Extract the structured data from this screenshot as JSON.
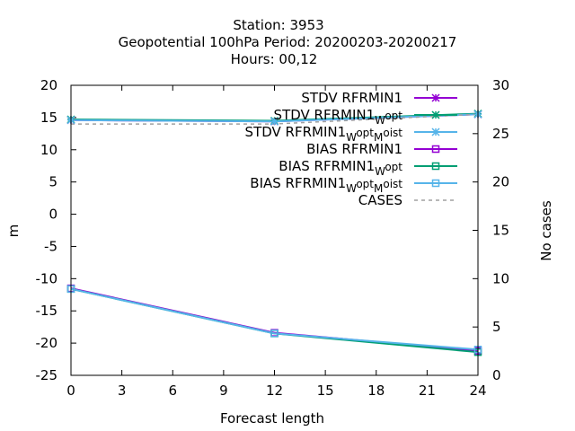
{
  "chart_data": {
    "type": "line",
    "title_lines": [
      "Station:     3953",
      "Geopotential 100hPa   Period: 20200203-20200217",
      "Hours:  00,12"
    ],
    "xlabel": "Forecast length",
    "ylabel": "m",
    "y2label": "No cases",
    "x": [
      0,
      12,
      24
    ],
    "xlim": [
      0,
      24
    ],
    "ylim": [
      -25,
      20
    ],
    "y2lim": [
      0,
      30
    ],
    "x_ticks": [
      0,
      3,
      6,
      9,
      12,
      15,
      18,
      21,
      24
    ],
    "y_ticks": [
      -25,
      -20,
      -15,
      -10,
      -5,
      0,
      5,
      10,
      15,
      20
    ],
    "y2_ticks": [
      0,
      5,
      10,
      15,
      20,
      25,
      30
    ],
    "grid": false,
    "legend_position": "top-right",
    "series": [
      {
        "name": "STDV RFRMIN1",
        "values": [
          14.6,
          14.4,
          15.5
        ],
        "color": "#9400d3",
        "marker": "star",
        "axis": "y"
      },
      {
        "name": "STDV RFRMIN1_Wopt",
        "values": [
          14.7,
          14.5,
          15.6
        ],
        "color": "#009e73",
        "marker": "star",
        "axis": "y"
      },
      {
        "name": "STDV RFRMIN1_Wopt_Moist",
        "values": [
          14.6,
          14.4,
          15.5
        ],
        "color": "#56b4e9",
        "marker": "star",
        "axis": "y"
      },
      {
        "name": "BIAS RFRMIN1",
        "values": [
          -11.5,
          -18.4,
          -21.2
        ],
        "color": "#9400d3",
        "marker": "square",
        "axis": "y"
      },
      {
        "name": "BIAS RFRMIN1_Wopt",
        "values": [
          -11.6,
          -18.5,
          -21.4
        ],
        "color": "#009e73",
        "marker": "square",
        "axis": "y"
      },
      {
        "name": "BIAS RFRMIN1_Wopt_Moist",
        "values": [
          -11.6,
          -18.5,
          -21.0
        ],
        "color": "#56b4e9",
        "marker": "square",
        "axis": "y"
      },
      {
        "name": "CASES",
        "values": [
          26.0,
          26.0,
          27.0
        ],
        "color": "#a0a0a0",
        "marker": "none",
        "dashed": true,
        "axis": "y2"
      }
    ],
    "legend": [
      {
        "base": "STDV RFRMIN1",
        "subs": []
      },
      {
        "base": "STDV RFRMIN1",
        "subs": [
          "W",
          "opt"
        ]
      },
      {
        "base": "STDV RFRMIN1",
        "subs": [
          "W",
          "opt",
          "M",
          "oist"
        ]
      },
      {
        "base": "BIAS RFRMIN1",
        "subs": []
      },
      {
        "base": "BIAS RFRMIN1",
        "subs": [
          "W",
          "opt"
        ]
      },
      {
        "base": "BIAS RFRMIN1",
        "subs": [
          "W",
          "opt",
          "M",
          "oist"
        ]
      },
      {
        "base": "CASES",
        "subs": []
      }
    ]
  }
}
